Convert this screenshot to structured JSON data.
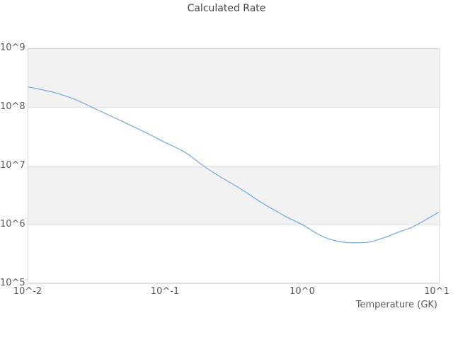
{
  "window": {
    "background": "#ffffff"
  },
  "chart_data": {
    "type": "line",
    "title": "Calculated Rate",
    "xlabel": "Temperature (GK)",
    "ylabel": "",
    "x_scale": "log",
    "y_scale": "log",
    "xlim": [
      0.01,
      10
    ],
    "ylim": [
      100000.0,
      1000000000.0
    ],
    "grid": true,
    "legend": "none",
    "x_ticks": [
      {
        "value": 0.01,
        "label": "10^-2"
      },
      {
        "value": 0.1,
        "label": "10^-1"
      },
      {
        "value": 1,
        "label": "10^0"
      },
      {
        "value": 10,
        "label": "10^1"
      }
    ],
    "y_ticks": [
      {
        "value": 1000000000.0,
        "label": "10^9"
      },
      {
        "value": 100000000.0,
        "label": "10^8"
      },
      {
        "value": 10000000.0,
        "label": "10^7"
      },
      {
        "value": 1000000.0,
        "label": "10^6"
      },
      {
        "value": 100000.0,
        "label": "10^5"
      }
    ],
    "background_bands": [
      [
        1000000000.0,
        100000000.0
      ],
      [
        10000000.0,
        1000000.0
      ]
    ],
    "series": [
      {
        "name": "Calculated Rate",
        "color": "#79aede",
        "x": [
          0.01,
          0.015,
          0.022,
          0.032,
          0.048,
          0.072,
          0.1,
          0.14,
          0.19,
          0.25,
          0.32,
          0.4,
          0.5,
          0.63,
          0.79,
          1.0,
          1.3,
          1.6,
          2.0,
          2.4,
          3.0,
          3.8,
          5.0,
          6.3,
          7.9,
          10.0
        ],
        "y": [
          220000000.0,
          180000000.0,
          135000000.0,
          90000000.0,
          58000000.0,
          37000000.0,
          25000000.0,
          17000000.0,
          10000000.0,
          6600000.0,
          4700000.0,
          3400000.0,
          2400000.0,
          1750000.0,
          1300000.0,
          1000000.0,
          690000.0,
          560000.0,
          500000.0,
          490000.0,
          500000.0,
          580000.0,
          740000.0,
          900000.0,
          1200000.0,
          1650000.0
        ]
      }
    ],
    "colors": {
      "band": "#f2f2f2",
      "grid": "#e2e2e2",
      "border": "#d8d8d8",
      "tick_text": "#595959",
      "title_text": "#444444",
      "line": "#79aede",
      "background": "#ffffff"
    }
  }
}
